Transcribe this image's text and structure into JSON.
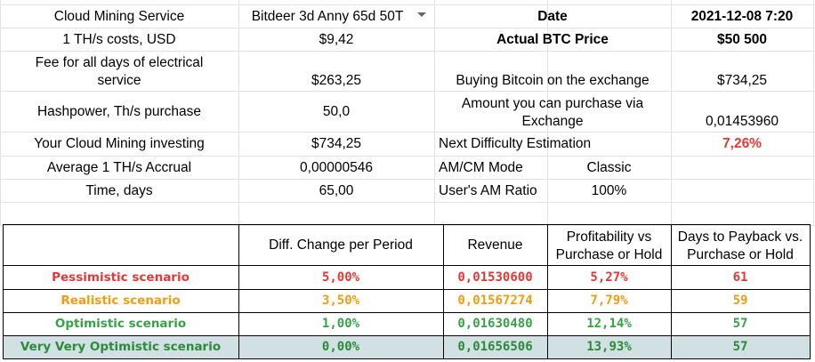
{
  "info": {
    "cloud_mining_service_label": "Cloud Mining Service",
    "cloud_mining_service_value": "Bitdeer 3d Anny 65d 50T",
    "date_label": "Date",
    "date_value": "2021-12-08 7:20",
    "th_cost_label": "1 TH/s costs, USD",
    "th_cost_value": "$9,42",
    "btc_price_label": "Actual BTC Price",
    "btc_price_value": "$50 500",
    "fee_label_line1": "Fee for all days of electrical",
    "fee_label_line2": "service",
    "fee_value": "$263,25",
    "buying_btc_label": "Buying Bitcoin on the exchange",
    "buying_btc_value": "$734,25",
    "hashpower_label": "Hashpower, Th/s purchase",
    "hashpower_value": "50,0",
    "amount_label_line1": "Amount you can purchase via",
    "amount_label_line2": "Exchange",
    "amount_value": "0,01453960",
    "investing_label": "Your Cloud Mining investing",
    "investing_value": "$734,25",
    "difficulty_label": "Next Difficulty Estimation",
    "difficulty_value": "7,26%",
    "accrual_label": "Average 1 TH/s Accrual",
    "accrual_value": "0,00000546",
    "mode_label": "AM/CM Mode",
    "mode_value": "Classic",
    "time_label": "Time, days",
    "time_value": "65,00",
    "ratio_label": "User's AM Ratio",
    "ratio_value": "100%"
  },
  "table": {
    "headers": {
      "diff_change": "Diff. Change per Period",
      "revenue": "Revenue",
      "profitability_line1": "Profitability vs",
      "profitability_line2": "Purchase or Hold",
      "payback_line1": "Days to Payback vs.",
      "payback_line2": "Purchase or Hold"
    },
    "rows": [
      {
        "label": "Pessimistic scenario",
        "diff": "5,00%",
        "revenue": "0,01530600",
        "profit": "5,27%",
        "days": "61"
      },
      {
        "label": "Realistic scenario",
        "diff": "3,50%",
        "revenue": "0,01567274",
        "profit": "7,79%",
        "days": "59"
      },
      {
        "label": "Optimistic scenario",
        "diff": "1,00%",
        "revenue": "0,01630480",
        "profit": "12,14%",
        "days": "57"
      },
      {
        "label": "Very Very Optimistic scenario",
        "diff": "0,00%",
        "revenue": "0,01656506",
        "profit": "13,93%",
        "days": "57"
      }
    ]
  },
  "colors": {
    "red": "#e53935",
    "orange": "#f39c12",
    "green": "#3aa14a",
    "dark_green": "#2d8a3b",
    "teal_fill": "#d0e0e3"
  }
}
